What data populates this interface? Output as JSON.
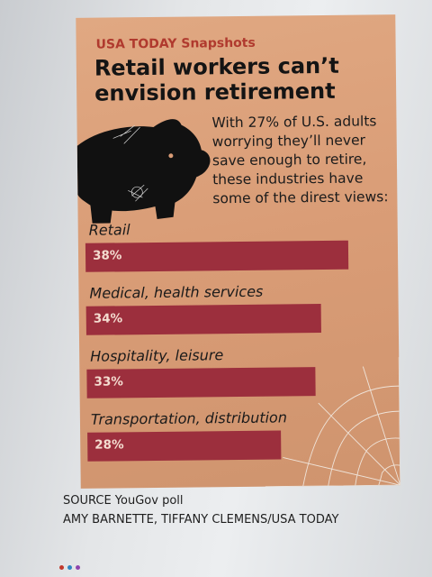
{
  "kicker": "USA TODAY Snapshots",
  "title": "Retail workers can’t envision retirement",
  "intro": "With 27% of U.S. adults worrying they’ll never save enough to retire, these industries have some of the direst views:",
  "source": "SOURCE  YouGov poll",
  "credit": "AMY BARNETTE, TIFFANY CLEMENS/USA TODAY",
  "colors": {
    "panel": "#d99c76",
    "bar": "#9c2f3d",
    "kicker": "#b03a2e"
  },
  "icons": {
    "illustration": "piggy-bank-icon",
    "decoration": "spider-web-icon"
  },
  "chart_data": {
    "type": "bar",
    "orientation": "horizontal",
    "categories": [
      "Retail",
      "Medical, health services",
      "Hospitality, leisure",
      "Transportation, distribution"
    ],
    "values": [
      38,
      34,
      33,
      28
    ],
    "value_labels": [
      "38%",
      "34%",
      "33%",
      "28%"
    ],
    "title": "Retail workers can’t envision retirement",
    "xlabel": "",
    "ylabel": "",
    "xlim": [
      0,
      38
    ],
    "grid": false,
    "legend": "none"
  }
}
